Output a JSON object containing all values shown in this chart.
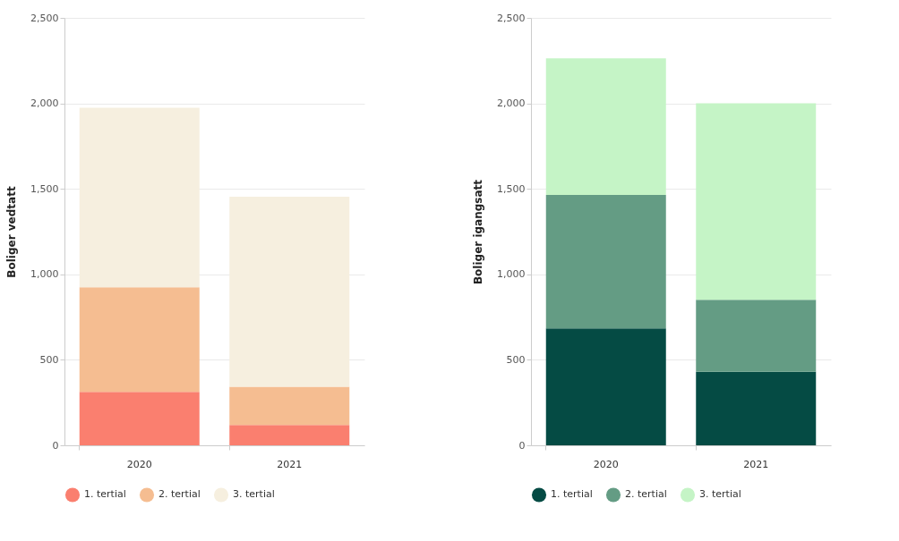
{
  "chart_data": [
    {
      "type": "bar",
      "stacked": true,
      "ylabel": "Boliger vedtatt",
      "categories": [
        "2020",
        "2021"
      ],
      "ylim": [
        0,
        2500
      ],
      "yticks": [
        {
          "value": 0,
          "label": "0"
        },
        {
          "value": 500,
          "label": "500"
        },
        {
          "value": 1000,
          "label": "1,000"
        },
        {
          "value": 1500,
          "label": "1,500"
        },
        {
          "value": 2000,
          "label": "2,000"
        },
        {
          "value": 2500,
          "label": "2,500"
        }
      ],
      "grid": "y",
      "legend": "bottom",
      "series": [
        {
          "name": "1. tertial",
          "color": "#fa7f6f",
          "values": [
            312,
            119
          ]
        },
        {
          "name": "2. tertial",
          "color": "#f5bd91",
          "values": [
            613,
            223
          ]
        },
        {
          "name": "3. tertial",
          "color": "#f6efdf",
          "values": [
            1049,
            1112
          ]
        }
      ]
    },
    {
      "type": "bar",
      "stacked": true,
      "ylabel": "Boliger igangsatt",
      "categories": [
        "2020",
        "2021"
      ],
      "ylim": [
        0,
        2500
      ],
      "yticks": [
        {
          "value": 0,
          "label": "0"
        },
        {
          "value": 500,
          "label": "500"
        },
        {
          "value": 1000,
          "label": "1,000"
        },
        {
          "value": 1500,
          "label": "1,500"
        },
        {
          "value": 2000,
          "label": "2,000"
        },
        {
          "value": 2500,
          "label": "2,500"
        }
      ],
      "grid": "y",
      "legend": "bottom",
      "series": [
        {
          "name": "1. tertial",
          "color": "#054b44",
          "values": [
            684,
            430
          ]
        },
        {
          "name": "2. tertial",
          "color": "#649c84",
          "values": [
            781,
            421
          ]
        },
        {
          "name": "3. tertial",
          "color": "#c5f4c6",
          "values": [
            798,
            1149
          ]
        }
      ]
    }
  ]
}
